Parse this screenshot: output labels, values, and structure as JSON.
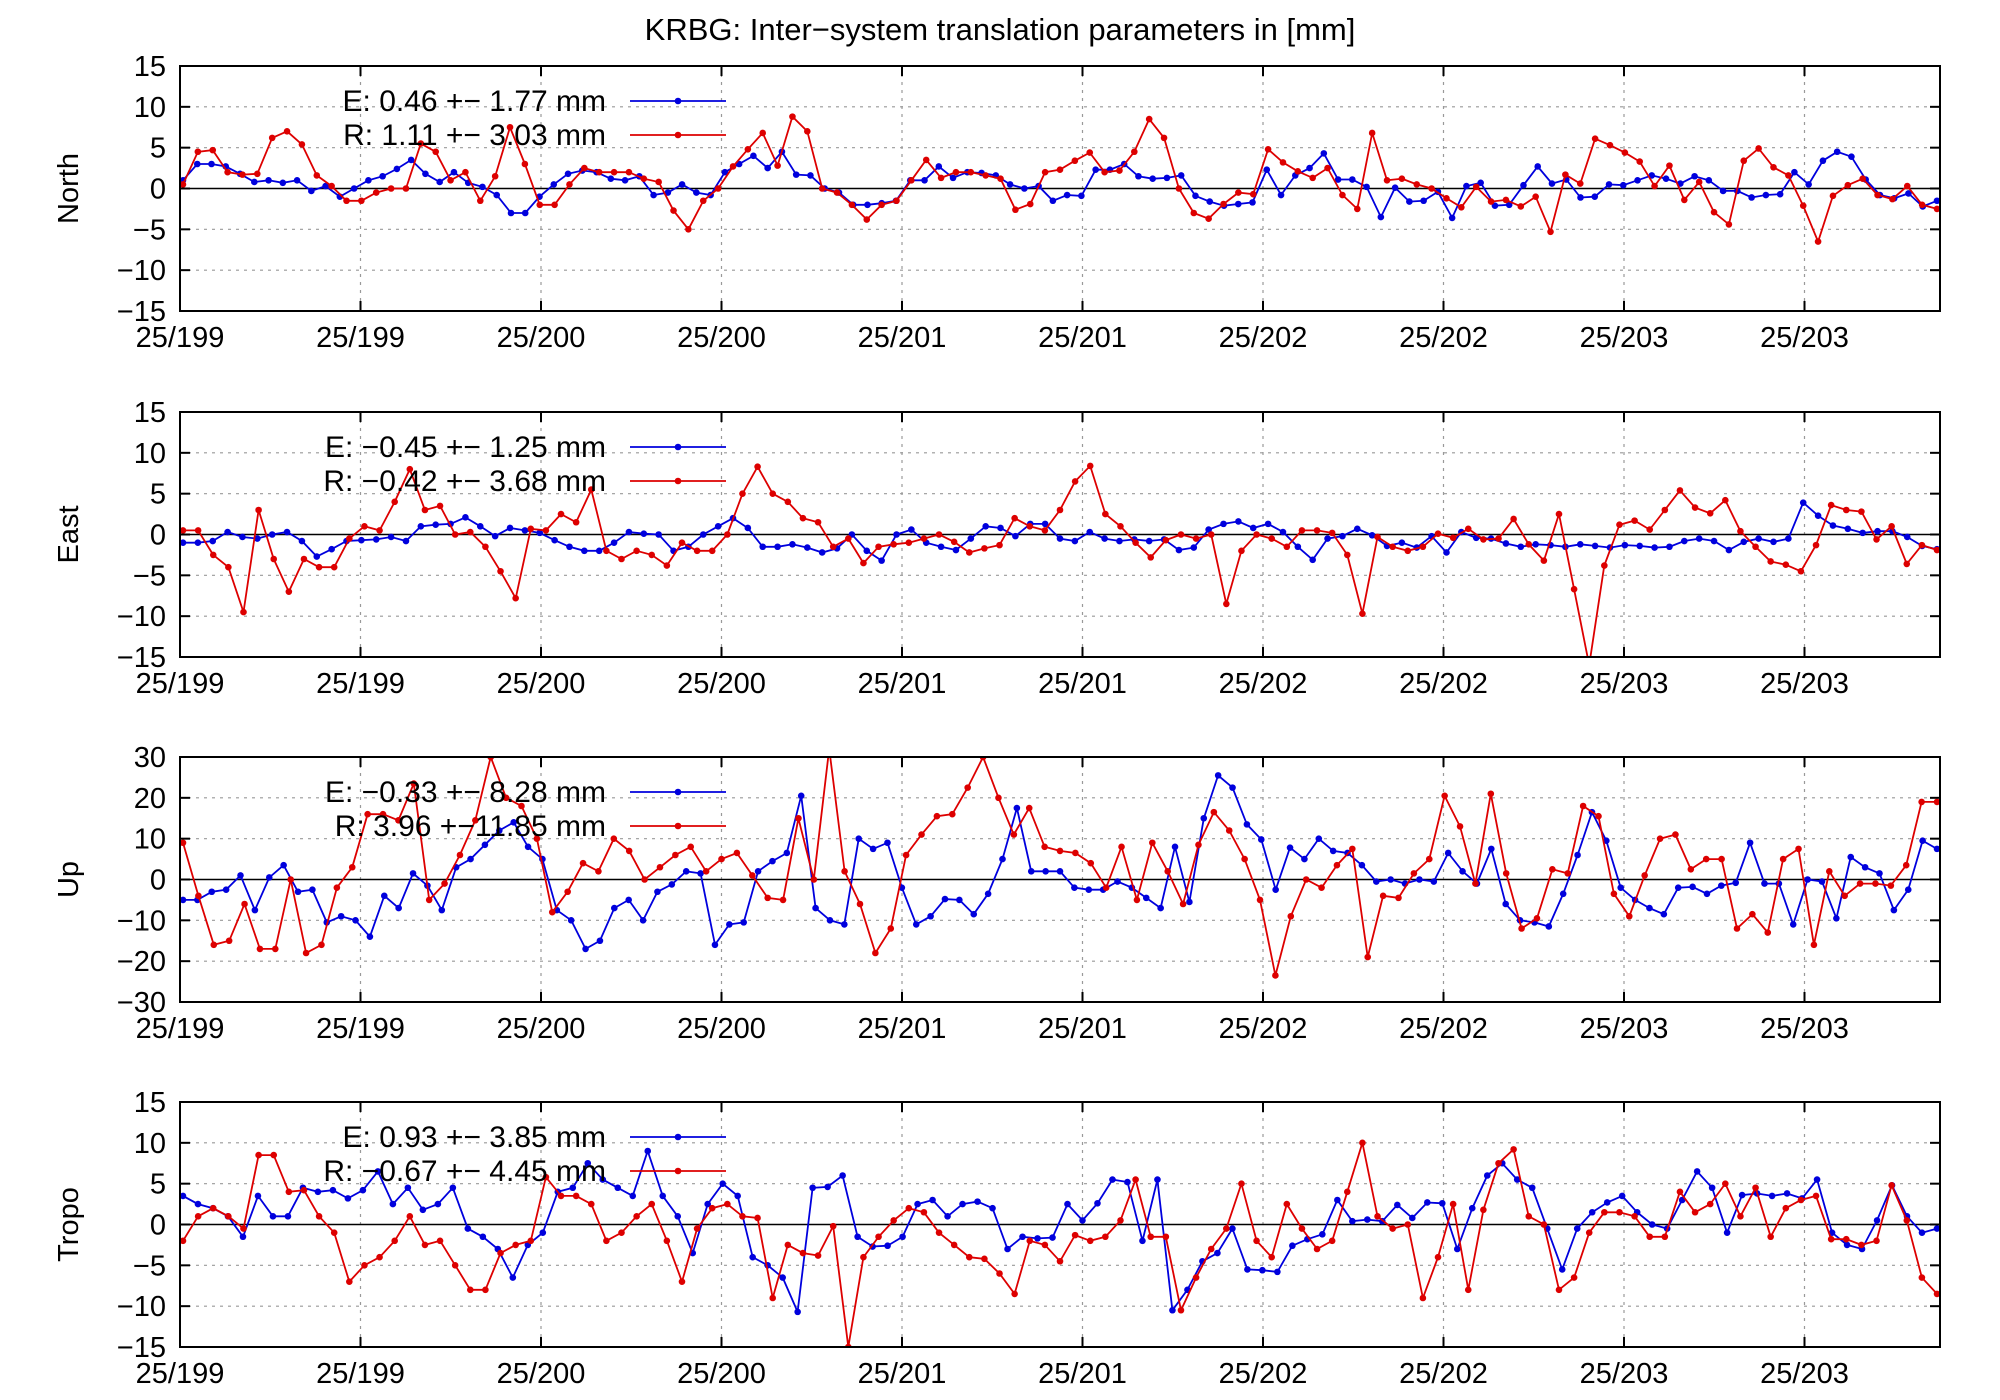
{
  "title": "KRBG: Inter−system translation parameters in [mm]",
  "colors": {
    "E": "#0000dd",
    "R": "#dd0000"
  },
  "chart_data": [
    {
      "type": "line",
      "ylabel": "North",
      "ylim": [
        -15,
        15
      ],
      "ytick_labels": [
        "15",
        "10",
        "5",
        "0",
        "−5",
        "−10",
        "−15"
      ],
      "ytick_values": [
        15,
        10,
        5,
        0,
        -5,
        -10,
        -15
      ],
      "xtick_labels": [
        "25/199",
        "25/199",
        "25/200",
        "25/200",
        "25/201",
        "25/201",
        "25/202",
        "25/202",
        "25/203",
        "25/203"
      ],
      "legend": [
        "E:   0.46 +− 1.77 mm",
        "R:   1.11 +− 3.03 mm"
      ],
      "series": [
        {
          "key": "E",
          "values": [
            1,
            3,
            3,
            2.7,
            1.8,
            0.8,
            1,
            0.7,
            1,
            -0.3,
            0.3,
            -1,
            0,
            1,
            1.5,
            2.4,
            3.5,
            1.8,
            0.8,
            2,
            0.7,
            0.2,
            -0.8,
            -3,
            -3,
            -1,
            0.5,
            1.8,
            2.2,
            2,
            1.2,
            1,
            1.5,
            -0.8,
            -0.5,
            0.5,
            -0.5,
            -0.8,
            2,
            3,
            4,
            2.5,
            4.5,
            1.7,
            1.6,
            0,
            -0.5,
            -2,
            -2,
            -1.8,
            -1.5,
            1,
            1,
            2.7,
            1.3,
            2,
            1.9,
            1.6,
            0.5,
            0,
            0.3,
            -1.5,
            -0.8,
            -0.9,
            2.3,
            2.3,
            3,
            1.5,
            1.2,
            1.3,
            1.6,
            -0.9,
            -1.6,
            -2.1,
            -1.9,
            -1.7,
            2.3,
            -0.8,
            1.6,
            2.5,
            4.3,
            1.1,
            1.1,
            0.2,
            -3.5,
            0.1,
            -1.6,
            -1.5,
            -0.4,
            -3.6,
            0.3,
            0.7,
            -2.1,
            -2,
            0.4,
            2.7,
            0.6,
            1.1,
            -1.1,
            -1,
            0.5,
            0.4,
            1,
            1.6,
            1.2,
            0.6,
            1.5,
            1,
            -0.3,
            -0.3,
            -1.1,
            -0.8,
            -0.7,
            2,
            0.5,
            3.4,
            4.5,
            3.9,
            1.1,
            -0.8,
            -1.2,
            -0.6,
            -2.2,
            -1.5
          ]
        },
        {
          "key": "R",
          "values": [
            0.5,
            4.5,
            4.7,
            2,
            1.7,
            1.8,
            6.2,
            7,
            5.4,
            1.6,
            0.3,
            -1.5,
            -1.5,
            -0.5,
            0,
            0,
            5.5,
            4.5,
            1,
            2,
            -1.5,
            1.5,
            7.5,
            3,
            -2,
            -2,
            0.5,
            2.5,
            2,
            2,
            2,
            1.2,
            0.8,
            -2.7,
            -5,
            -1.5,
            0,
            2.7,
            4.8,
            6.8,
            2.8,
            8.8,
            7,
            0,
            -0.5,
            -2,
            -3.8,
            -2,
            -1.5,
            1,
            3.5,
            1.3,
            2,
            2,
            1.6,
            1.2,
            -2.6,
            -1.9,
            2,
            2.3,
            3.4,
            4.4,
            2,
            2.2,
            4.5,
            8.5,
            6.2,
            0,
            -3,
            -3.7,
            -1.9,
            -0.5,
            -0.7,
            4.8,
            3.2,
            2.1,
            1.3,
            2.5,
            -0.8,
            -2.5,
            6.8,
            1,
            1.2,
            0.5,
            0,
            -1.2,
            -2.3,
            0.2,
            -1.6,
            -1.4,
            -2.2,
            -1,
            -5.3,
            1.7,
            0.6,
            6.1,
            5.3,
            4.4,
            3.3,
            0.3,
            2.8,
            -1.4,
            0.8,
            -2.9,
            -4.4,
            3.4,
            4.9,
            2.6,
            1.6,
            -2.1,
            -6.5,
            -0.9,
            0.4,
            1.2,
            -0.8,
            -1.3,
            0.3,
            -2,
            -2.5
          ]
        }
      ]
    },
    {
      "type": "line",
      "ylabel": "East",
      "ylim": [
        -15,
        15
      ],
      "ytick_labels": [
        "15",
        "10",
        "5",
        "0",
        "−5",
        "−10",
        "−15"
      ],
      "ytick_values": [
        15,
        10,
        5,
        0,
        -5,
        -10,
        -15
      ],
      "xtick_labels": [
        "25/199",
        "25/199",
        "25/200",
        "25/200",
        "25/201",
        "25/201",
        "25/202",
        "25/202",
        "25/203",
        "25/203"
      ],
      "legend": [
        "E:  −0.45 +− 1.25 mm",
        "R:  −0.42 +− 3.68 mm"
      ],
      "series": [
        {
          "key": "E",
          "values": [
            -1,
            -1,
            -0.8,
            0.3,
            -0.3,
            -0.5,
            0,
            0.3,
            -0.8,
            -2.7,
            -1.8,
            -0.8,
            -0.7,
            -0.6,
            -0.3,
            -0.8,
            1,
            1.2,
            1.3,
            2.1,
            1,
            -0.2,
            0.8,
            0.5,
            0.2,
            -0.7,
            -1.5,
            -2,
            -2,
            -1,
            0.3,
            0.1,
            0,
            -2,
            -1.5,
            0,
            1,
            2,
            0.8,
            -1.5,
            -1.5,
            -1.2,
            -1.6,
            -2.2,
            -1.7,
            0,
            -2,
            -3.2,
            0,
            0.6,
            -1,
            -1.5,
            -1.9,
            -0.5,
            1,
            0.8,
            -0.2,
            1.3,
            1.3,
            -0.5,
            -0.8,
            0.3,
            -0.5,
            -0.8,
            -0.6,
            -0.8,
            -0.6,
            -1.9,
            -1.6,
            0.6,
            1.3,
            1.6,
            0.8,
            1.3,
            0.3,
            -1.5,
            -3.1,
            -0.5,
            -0.2,
            0.7,
            -0.1,
            -1.4,
            -1,
            -1.6,
            -0.2,
            -2.2,
            0.3,
            -0.4,
            -0.5,
            -1.1,
            -1.5,
            -1.2,
            -1.3,
            -1.5,
            -1.2,
            -1.4,
            -1.6,
            -1.3,
            -1.4,
            -1.6,
            -1.5,
            -0.8,
            -0.5,
            -0.8,
            -1.9,
            -0.9,
            -0.5,
            -0.9,
            -0.5,
            3.9,
            2.3,
            1.1,
            0.7,
            0.2,
            0.4,
            0.4,
            -0.3,
            -1.4,
            -1.8
          ]
        },
        {
          "key": "R",
          "values": [
            0.5,
            0.5,
            -2.5,
            -4,
            -9.5,
            3,
            -3,
            -7,
            -3,
            -4,
            -4,
            -0.5,
            1,
            0.5,
            4,
            8,
            3,
            3.5,
            0,
            0.3,
            -1.5,
            -4.5,
            -7.8,
            0.7,
            0.5,
            2.5,
            1.5,
            5.5,
            -2,
            -3,
            -2,
            -2.5,
            -3.8,
            -1,
            -2,
            -2,
            0,
            5,
            8.3,
            5,
            4,
            2,
            1.5,
            -1.5,
            -0.5,
            -3.5,
            -1.5,
            -1.2,
            -1,
            -0.5,
            0,
            -0.9,
            -2.2,
            -1.7,
            -1.3,
            2,
            1,
            0.5,
            3,
            6.5,
            8.4,
            2.5,
            1,
            -1,
            -2.8,
            -0.7,
            0,
            -0.5,
            0,
            -8.5,
            -2,
            0,
            -0.5,
            -1.5,
            0.5,
            0.5,
            0.2,
            -2.5,
            -9.7,
            -0.3,
            -1.5,
            -2,
            -1.5,
            0.1,
            -0.4,
            0.7,
            -0.6,
            -0.5,
            1.9,
            -1.2,
            -3.2,
            2.5,
            -6.7,
            -16,
            -3.8,
            1.2,
            1.7,
            0.6,
            3,
            5.4,
            3.3,
            2.6,
            4.2,
            0.4,
            -1.5,
            -3.3,
            -3.7,
            -4.5,
            -1.3,
            3.6,
            3,
            2.8,
            -0.6,
            1,
            -3.6,
            -1.3,
            -1.9
          ]
        }
      ]
    },
    {
      "type": "line",
      "ylabel": "Up",
      "ylim": [
        -30,
        30
      ],
      "ytick_labels": [
        "30",
        "20",
        "10",
        "0",
        "−10",
        "−20",
        "−30"
      ],
      "ytick_values": [
        30,
        20,
        10,
        0,
        -10,
        -20,
        -30
      ],
      "xtick_labels": [
        "25/199",
        "25/199",
        "25/200",
        "25/200",
        "25/201",
        "25/201",
        "25/202",
        "25/202",
        "25/203",
        "25/203"
      ],
      "legend": [
        "E:  −0.33 +− 8.28 mm",
        "R:   3.96 +−11.85 mm"
      ],
      "series": [
        {
          "key": "E",
          "values": [
            -5,
            -5,
            -3,
            -2.5,
            1,
            -7.5,
            0.5,
            3.5,
            -3,
            -2.5,
            -10.5,
            -9,
            -10,
            -14,
            -4,
            -7,
            1.5,
            -1.5,
            -7.5,
            3,
            5,
            8.5,
            12,
            14,
            8,
            5,
            -7.5,
            -10,
            -17,
            -15,
            -7,
            -5,
            -10,
            -3,
            -1.2,
            2,
            1.5,
            -16,
            -11,
            -10.5,
            2,
            4.5,
            6.5,
            20.5,
            -7,
            -10,
            -11,
            10,
            7.5,
            9,
            -2,
            -11,
            -9,
            -4.8,
            -5,
            -8.5,
            -3.5,
            5,
            17.5,
            2,
            2,
            2,
            -2,
            -2.5,
            -2.5,
            -0.5,
            -2,
            -4.5,
            -7,
            8,
            -5.5,
            15,
            25.5,
            22.5,
            13.5,
            9.8,
            -2.5,
            7.8,
            5,
            10,
            7,
            6.5,
            3.5,
            -0.5,
            0,
            -1,
            0,
            -0.5,
            6.5,
            2,
            -1,
            7.5,
            -6,
            -10,
            -10.5,
            -11.5,
            -3.5,
            6,
            16.5,
            9.5,
            -2,
            -5,
            -7,
            -8.5,
            -2,
            -1.8,
            -3.5,
            -1.5,
            -0.8,
            9,
            -1,
            -1,
            -11,
            0,
            -0.5,
            -9.5,
            5.5,
            3,
            1.5,
            -7.5,
            -2.5,
            9.5,
            7.5
          ]
        },
        {
          "key": "R",
          "values": [
            9,
            -4,
            -16,
            -15,
            -6,
            -17,
            -17,
            0,
            -18,
            -16,
            -2,
            3,
            16,
            16,
            14.5,
            23.5,
            -5,
            -1,
            6,
            14.5,
            30,
            20,
            18,
            10,
            -8,
            -3,
            4,
            2,
            10,
            7,
            0,
            3,
            6,
            8,
            2,
            5,
            6.5,
            1,
            -4.5,
            -5,
            15,
            0,
            32,
            2,
            -6,
            -18,
            -12,
            6,
            11,
            15.5,
            16,
            22.5,
            30,
            20,
            11,
            17.5,
            8,
            7,
            6.5,
            4,
            -2,
            8,
            -5,
            9,
            2,
            -6,
            8.5,
            16.5,
            12,
            5,
            -5,
            -23.5,
            -9,
            0,
            -2,
            3.5,
            7.5,
            -19,
            -4,
            -4.5,
            1.5,
            5,
            20.5,
            13,
            -1,
            21,
            1.5,
            -12,
            -9.5,
            2.5,
            1.5,
            18,
            15.5,
            -3.5,
            -9,
            1,
            10,
            11,
            2.5,
            5,
            5,
            -12,
            -8.5,
            -13,
            5,
            7.5,
            -16,
            2,
            -4,
            -1,
            -1,
            -1.5,
            3.5,
            19,
            19
          ]
        }
      ]
    },
    {
      "type": "line",
      "ylabel": "Tropo",
      "ylim": [
        -15,
        15
      ],
      "ytick_labels": [
        "15",
        "10",
        "5",
        "0",
        "−5",
        "−10",
        "−15"
      ],
      "ytick_values": [
        15,
        10,
        5,
        0,
        -5,
        -10,
        -15
      ],
      "xtick_labels": [
        "25/199",
        "25/199",
        "25/200",
        "25/200",
        "25/201",
        "25/201",
        "25/202",
        "25/202",
        "25/203",
        "25/203"
      ],
      "legend": [
        "E:   0.93 +− 3.85 mm",
        "R:  −0.67 +− 4.45 mm"
      ],
      "series": [
        {
          "key": "E",
          "values": [
            3.5,
            2.5,
            2,
            1,
            -1.5,
            3.5,
            1,
            1,
            4.5,
            4,
            4.2,
            3.2,
            4.2,
            6.5,
            2.5,
            4.5,
            1.8,
            2.5,
            4.5,
            -0.5,
            -1.5,
            -3,
            -6.5,
            -2.5,
            -1,
            4,
            4.5,
            7.5,
            5.5,
            4.5,
            3.5,
            9,
            3.5,
            1,
            -3.5,
            2.5,
            5,
            3.5,
            -4,
            -5,
            -6.5,
            -10.7,
            4.5,
            4.6,
            6,
            -1.5,
            -2.7,
            -2.6,
            -1.5,
            2.5,
            3,
            1,
            2.5,
            2.8,
            2,
            -3,
            -1.5,
            -1.7,
            -1.6,
            2.5,
            0.5,
            2.6,
            5.5,
            5.2,
            -2,
            5.5,
            -10.5,
            -8,
            -4.5,
            -3.5,
            -0.5,
            -5.5,
            -5.6,
            -5.8,
            -2.6,
            -1.8,
            -1.2,
            3,
            0.4,
            0.6,
            0.4,
            2.4,
            0.8,
            2.7,
            2.6,
            -3,
            2,
            6,
            7.5,
            5.5,
            4.5,
            -0.5,
            -5.5,
            -0.5,
            1.5,
            2.7,
            3.5,
            1.5,
            0,
            -0.5,
            3,
            6.5,
            4.5,
            -1,
            3.6,
            3.8,
            3.5,
            3.8,
            3.2,
            5.5,
            -1,
            -2.5,
            -3,
            0.5,
            4.8,
            1,
            -1,
            -0.5
          ]
        },
        {
          "key": "R",
          "values": [
            -2,
            1,
            2,
            1,
            -0.5,
            8.5,
            8.5,
            4,
            4.2,
            1,
            -1,
            -7,
            -5,
            -4,
            -2,
            1,
            -2.5,
            -2,
            -5,
            -8,
            -8,
            -3.5,
            -2.5,
            -2,
            5.8,
            3.5,
            3.5,
            2.5,
            -2,
            -1,
            1,
            2.5,
            -2,
            -7,
            -0.5,
            2,
            2.5,
            1,
            0.8,
            -9,
            -2.5,
            -3.5,
            -3.8,
            -0.2,
            -15,
            -4,
            -1.5,
            0.5,
            2,
            1.5,
            -1,
            -2.5,
            -4,
            -4.2,
            -6,
            -8.5,
            -2,
            -2.5,
            -4.5,
            -1.3,
            -2,
            -1.5,
            0.5,
            5.5,
            -1.5,
            -1.5,
            -10.5,
            -6.5,
            -3,
            -0.5,
            5,
            -2,
            -4,
            2.5,
            -0.5,
            -3,
            -2,
            4,
            10,
            1,
            -0.5,
            0,
            -9,
            -4,
            2.5,
            -8,
            1.8,
            7.5,
            9.2,
            1,
            0,
            -8,
            -6.5,
            -1,
            1.5,
            1.5,
            1,
            -1.5,
            -1.5,
            4,
            1.5,
            2.5,
            5,
            1,
            4.5,
            -1.5,
            2,
            3,
            3.5,
            -1.8,
            -1.8,
            -2.5,
            -2,
            4.8,
            0.5,
            -6.5,
            -8.5
          ]
        }
      ]
    }
  ]
}
